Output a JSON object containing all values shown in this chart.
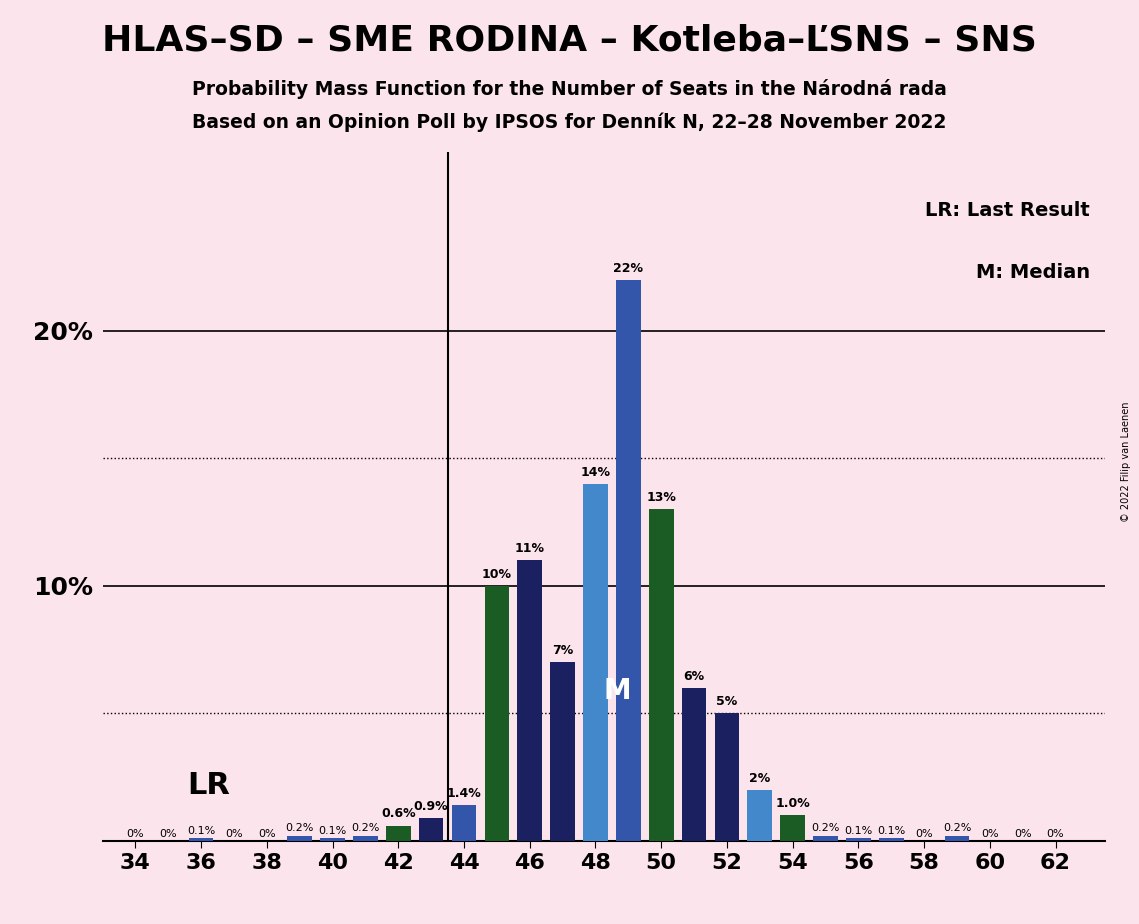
{
  "title1": "HLAS–SD – SME RODINA – Kotleba–ĽSNS – SNS",
  "subtitle1": "Probability Mass Function for the Number of Seats in the Národná rada",
  "subtitle2": "Based on an Opinion Poll by IPSOS for Denník N, 22–28 November 2022",
  "copyright": "© 2022 Filip van Laenen",
  "background_color": "#fce4ec",
  "seats": [
    34,
    35,
    36,
    37,
    38,
    39,
    40,
    41,
    42,
    43,
    44,
    45,
    46,
    47,
    48,
    49,
    50,
    51,
    52,
    53,
    54,
    55,
    56,
    57,
    58,
    59,
    60,
    61,
    62
  ],
  "values": [
    0.0,
    0.0,
    0.001,
    0.0,
    0.0,
    0.002,
    0.001,
    0.002,
    0.006,
    0.009,
    0.014,
    0.1,
    0.11,
    0.07,
    0.14,
    0.22,
    0.13,
    0.06,
    0.05,
    0.02,
    0.01,
    0.002,
    0.001,
    0.001,
    0.0,
    0.002,
    0.0,
    0.0,
    0.0
  ],
  "bar_colors": [
    "#3355aa",
    "#3355aa",
    "#3355aa",
    "#3355aa",
    "#3355aa",
    "#3355aa",
    "#3355aa",
    "#3355aa",
    "#1a5c24",
    "#1a2060",
    "#3355aa",
    "#1a5c24",
    "#1a2060",
    "#1a2060",
    "#4488cc",
    "#3355aa",
    "#1a5c24",
    "#1a2060",
    "#1a2060",
    "#4488cc",
    "#1a5c24",
    "#3355aa",
    "#3355aa",
    "#3355aa",
    "#3355aa",
    "#3355aa",
    "#3355aa",
    "#3355aa",
    "#3355aa"
  ],
  "label_values": {
    "34": "0%",
    "35": "0%",
    "36": "0.1%",
    "37": "0%",
    "38": "0%",
    "39": "0.2%",
    "40": "0.1%",
    "41": "0.2%",
    "42": "0.6%",
    "43": "0.9%",
    "44": "1.4%",
    "45": "10%",
    "46": "11%",
    "47": "7%",
    "48": "14%",
    "49": "22%",
    "50": "13%",
    "51": "6%",
    "52": "5%",
    "53": "2%",
    "54": "1.0%",
    "55": "0.2%",
    "56": "0.1%",
    "57": "0.1%",
    "58": "0%",
    "59": "0.2%",
    "60": "0%",
    "61": "0%",
    "62": "0%"
  },
  "lr_seat": 43,
  "median_seat": 48,
  "dotted_lines": [
    0.05,
    0.15
  ],
  "solid_lines": [
    0.1,
    0.2
  ],
  "bar_width": 0.75,
  "ylim": [
    0,
    0.27
  ],
  "xticks": [
    34,
    36,
    38,
    40,
    42,
    44,
    46,
    48,
    50,
    52,
    54,
    56,
    58,
    60,
    62
  ]
}
